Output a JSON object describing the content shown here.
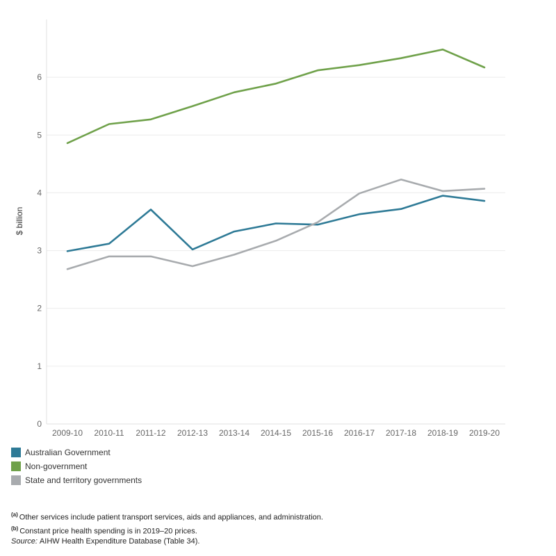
{
  "chart_data": {
    "type": "line",
    "categories": [
      "2009-10",
      "2010-11",
      "2011-12",
      "2012-13",
      "2013-14",
      "2014-15",
      "2015-16",
      "2016-17",
      "2017-18",
      "2018-19",
      "2019-20"
    ],
    "series": [
      {
        "name": "Australian Government",
        "color": "#2e7a96",
        "values": [
          2.99,
          3.12,
          3.71,
          3.02,
          3.33,
          3.47,
          3.45,
          3.63,
          3.72,
          3.95,
          3.86
        ]
      },
      {
        "name": "Non-government",
        "color": "#6fa14a",
        "values": [
          4.86,
          5.19,
          5.27,
          5.5,
          5.74,
          5.89,
          6.12,
          6.21,
          6.33,
          6.48,
          6.17
        ]
      },
      {
        "name": "State and territory governments",
        "color": "#a8abae",
        "values": [
          2.68,
          2.9,
          2.9,
          2.73,
          2.93,
          3.17,
          3.49,
          3.99,
          4.23,
          4.03,
          4.07
        ]
      }
    ],
    "ylabel": "$ billion",
    "ylim": [
      0,
      7
    ],
    "yticks": [
      0,
      1,
      2,
      3,
      4,
      5,
      6
    ],
    "grid": true,
    "legend_position": "bottom-left"
  },
  "notes": [
    {
      "marker": "(a)",
      "text": "Other services include patient transport services, aids and appliances, and administration."
    },
    {
      "marker": "(b)",
      "text": "Constant price health spending is in 2019–20 prices."
    }
  ],
  "source": {
    "label": "Source:",
    "text": "AIHW Health Expenditure Database (Table 34)."
  }
}
